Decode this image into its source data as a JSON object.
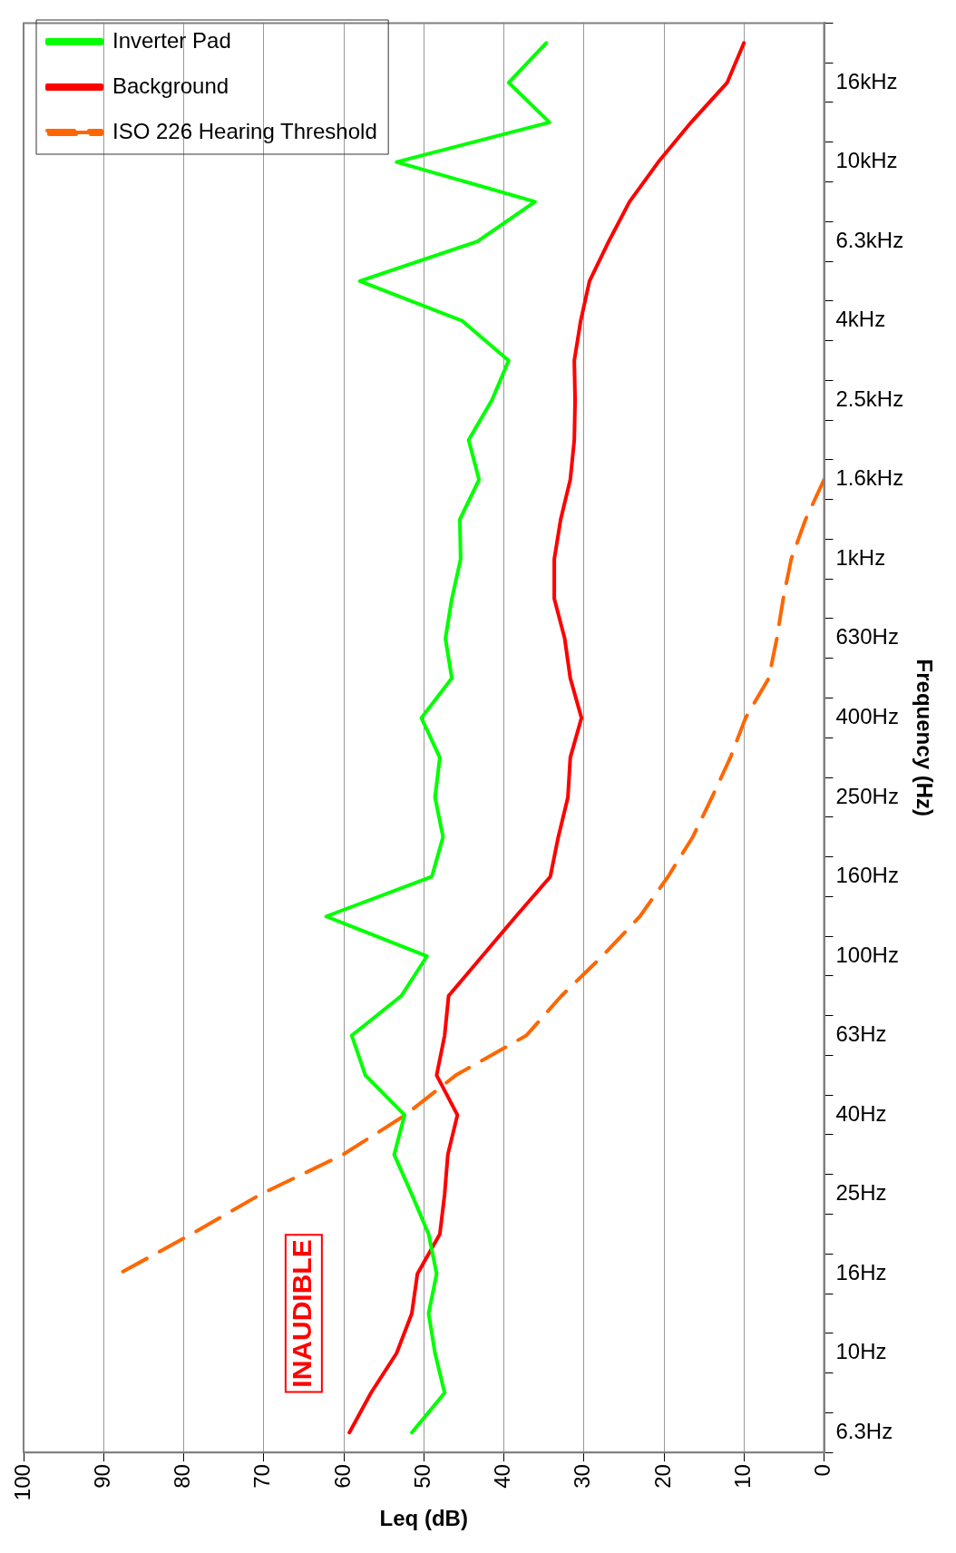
{
  "chart_data": {
    "type": "line",
    "orientation": "horizontal",
    "xlabel": "Leq (dB)",
    "ylabel": "Frequency (Hz)",
    "categories": [
      null,
      "16kHz",
      null,
      "10kHz",
      null,
      "6.3kHz",
      null,
      "4kHz",
      null,
      "2.5kHz",
      null,
      "1.6kHz",
      null,
      "1kHz",
      null,
      "630Hz",
      null,
      "400Hz",
      null,
      "250Hz",
      null,
      "160Hz",
      null,
      "100Hz",
      null,
      "63Hz",
      null,
      "40Hz",
      null,
      "25Hz",
      null,
      "16Hz",
      null,
      "10Hz",
      null,
      "6.3Hz"
    ],
    "series": [
      {
        "name": "Inverter Pad",
        "color": "#00ff00",
        "values": [
          34.7,
          39.4,
          34.3,
          53.4,
          36.1,
          43.3,
          58.0,
          45.2,
          39.4,
          41.5,
          44.4,
          43.1,
          45.5,
          45.4,
          46.5,
          47.3,
          46.5,
          50.3,
          48.0,
          48.6,
          47.6,
          49.0,
          62.2,
          49.6,
          52.8,
          59.0,
          57.3,
          52.4,
          53.7,
          51.5,
          49.4,
          48.4,
          49.4,
          48.6,
          47.4,
          51.5
        ]
      },
      {
        "name": "Background",
        "color": "#ff0000",
        "values": [
          10.0,
          12.1,
          16.6,
          20.7,
          24.3,
          26.9,
          29.3,
          30.4,
          31.2,
          31.1,
          31.2,
          31.7,
          32.9,
          33.7,
          33.7,
          32.4,
          31.7,
          30.3,
          31.7,
          32.0,
          33.2,
          34.2,
          38.5,
          42.7,
          46.9,
          47.4,
          48.4,
          45.8,
          47.0,
          47.4,
          48.0,
          50.8,
          51.5,
          53.4,
          56.6,
          59.3
        ]
      },
      {
        "name": "ISO 226 Hearing Threshold",
        "color": "#ff6600",
        "line_style": "dashed",
        "values": [
          null,
          null,
          null,
          null,
          null,
          null,
          null,
          null,
          null,
          null,
          null,
          0,
          2.3,
          4.1,
          5.1,
          5.9,
          6.9,
          9.8,
          11.7,
          14.0,
          16.4,
          19.5,
          23.0,
          27.7,
          32.8,
          37.2,
          46,
          52.3,
          60.1,
          70.4,
          79,
          88.1,
          null,
          null,
          null,
          null
        ]
      }
    ],
    "xlim": [
      100,
      0
    ],
    "xticks": [
      0,
      10,
      20,
      30,
      40,
      50,
      60,
      70,
      80,
      90,
      100
    ],
    "grid": "x",
    "legend": "top left",
    "marker": "none",
    "line_style": "solid",
    "annotations": [
      "INAUDIBLE"
    ]
  }
}
